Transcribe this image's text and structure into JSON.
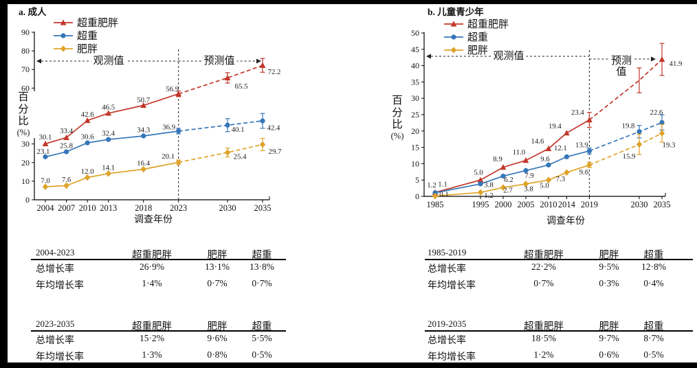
{
  "chart_data": [
    {
      "type": "line",
      "title": "a. 成人",
      "xlabel": "调查年份",
      "ylabel": "百分比",
      "ylabel_unit": "(%)",
      "observed_label": "观测值",
      "predicted_label": "预测值",
      "years": [
        2004,
        2007,
        2010,
        2013,
        2018,
        2023,
        2030,
        2035
      ],
      "break_year": 2023,
      "ylim": [
        0,
        90
      ],
      "ytick_step": 10,
      "legend_position": "top-left",
      "series": [
        {
          "name": "超重肥胖",
          "color": "#c2362b",
          "marker": "triangle",
          "values": [
            30.1,
            33.4,
            42.6,
            46.5,
            50.7,
            56.9,
            65.5,
            72.2
          ],
          "point_labels": [
            "30.1",
            "33.4",
            "42.6",
            "46.5",
            "50.7",
            "56.9",
            "65.5",
            "72.2"
          ],
          "err": [
            null,
            null,
            null,
            null,
            null,
            1.5,
            2.8,
            3.7
          ],
          "label_offsets": [
            [
              0,
              -10
            ],
            [
              0,
              -10
            ],
            [
              0,
              -9
            ],
            [
              0,
              -9
            ],
            [
              0,
              -8
            ],
            [
              -9,
              -7
            ],
            [
              20,
              12
            ],
            [
              17,
              9
            ]
          ]
        },
        {
          "name": "超重",
          "color": "#3576b9",
          "marker": "circle",
          "values": [
            23.1,
            25.8,
            30.6,
            32.4,
            34.3,
            36.9,
            40.1,
            42.4
          ],
          "point_labels": [
            "23.1",
            "25.8",
            "30.6",
            "32.4",
            "34.3",
            "36.9",
            "40.1",
            "42.4"
          ],
          "err": [
            null,
            null,
            null,
            null,
            null,
            1.5,
            3.5,
            4.0
          ],
          "label_offsets": [
            [
              -3,
              -8
            ],
            [
              0,
              -9
            ],
            [
              0,
              -9
            ],
            [
              0,
              -9
            ],
            [
              0,
              -9
            ],
            [
              -14,
              -6
            ],
            [
              15,
              6
            ],
            [
              16,
              10
            ]
          ]
        },
        {
          "name": "肥胖",
          "color": "#dfa32a",
          "marker": "diamond",
          "values": [
            7.0,
            7.6,
            12.0,
            14.1,
            16.4,
            20.1,
            25.4,
            29.7
          ],
          "point_labels": [
            "7.0",
            "7.6",
            "12.0",
            "14.1",
            "16.4",
            "20.1",
            "25.4",
            "29.7"
          ],
          "err": [
            null,
            null,
            null,
            null,
            null,
            1.2,
            2.4,
            3.3
          ],
          "label_offsets": [
            [
              0,
              -9
            ],
            [
              0,
              -9
            ],
            [
              0,
              -9
            ],
            [
              0,
              -9
            ],
            [
              0,
              -9
            ],
            [
              -15,
              -9
            ],
            [
              18,
              6
            ],
            [
              18,
              10
            ]
          ]
        }
      ]
    },
    {
      "type": "line",
      "title": "b. 儿童青少年",
      "xlabel": "调查年份",
      "ylabel": "百分比",
      "ylabel_unit": "(%)",
      "observed_label": "观测值",
      "predicted_label": "预测值",
      "years": [
        1985,
        1995,
        2000,
        2005,
        2010,
        2014,
        2019,
        2030,
        2035
      ],
      "break_year": 2019,
      "ylim": [
        0,
        50
      ],
      "ytick_step": 5,
      "legend_position": "top-left",
      "series": [
        {
          "name": "超重肥胖",
          "color": "#c2362b",
          "marker": "triangle",
          "values": [
            1.2,
            5.0,
            8.9,
            11.0,
            14.6,
            19.4,
            23.4,
            35.5,
            41.9
          ],
          "point_labels": [
            "1.2",
            "5.0",
            "8.9",
            "11.0",
            "14.6",
            "19.4",
            "23.4",
            null,
            "41.9"
          ],
          "err": [
            null,
            null,
            null,
            null,
            null,
            null,
            2.3,
            3.8,
            4.9
          ],
          "label_offsets": [
            [
              -5,
              -11
            ],
            [
              -3,
              -11
            ],
            [
              -8,
              -12
            ],
            [
              -10,
              -12
            ],
            [
              -16,
              -11
            ],
            [
              -17,
              -10
            ],
            [
              -17,
              -11
            ],
            null,
            [
              20,
              6
            ]
          ],
          "skip_markers": [
            7
          ]
        },
        {
          "name": "超重",
          "color": "#3576b9",
          "marker": "circle",
          "values": [
            1.1,
            3.8,
            6.2,
            7.9,
            9.6,
            12.1,
            13.9,
            19.8,
            22.6
          ],
          "point_labels": [
            "1.1",
            "3.8",
            "6.2",
            "7.9",
            "9.6",
            "12.1",
            "13.9",
            "19.8",
            "22.6"
          ],
          "err": [
            null,
            null,
            null,
            null,
            null,
            null,
            0.9,
            1.9,
            2.3
          ],
          "label_offsets": [
            [
              11,
              -13
            ],
            [
              12,
              1
            ],
            [
              8,
              5
            ],
            [
              5,
              7
            ],
            [
              -5,
              -9
            ],
            [
              -9,
              -13
            ],
            [
              -11,
              -9
            ],
            [
              -16,
              -9
            ],
            [
              -8,
              -15
            ]
          ]
        },
        {
          "name": "肥胖",
          "color": "#dfa32a",
          "marker": "diamond",
          "values": [
            0.1,
            1.2,
            2.7,
            3.8,
            5.0,
            7.3,
            9.6,
            15.9,
            19.3
          ],
          "point_labels": [
            "0.1",
            "1.2",
            "2.7",
            "3.8",
            "5.0",
            "7.3",
            "9.6",
            "15.9",
            "19.3"
          ],
          "err": [
            null,
            null,
            null,
            null,
            null,
            null,
            0.8,
            3.1,
            2.7
          ],
          "label_offsets": [
            [
              13,
              -3
            ],
            [
              12,
              4
            ],
            [
              7,
              4
            ],
            [
              4,
              7
            ],
            [
              -6,
              8
            ],
            [
              -9,
              9
            ],
            [
              -8,
              10
            ],
            [
              -15,
              17
            ],
            [
              10,
              17
            ]
          ]
        }
      ]
    }
  ],
  "tables": [
    {
      "period": "2004-2023",
      "columns": [
        "超重肥胖",
        "肥胖",
        "超重"
      ],
      "rows": [
        {
          "label": "总增长率",
          "values": [
            "26·9%",
            "13·1%",
            "13·8%"
          ]
        },
        {
          "label": "年均增长率",
          "values": [
            "1·4%",
            "0·7%",
            "0·7%"
          ]
        }
      ]
    },
    {
      "period": "2023-2035",
      "columns": [
        "超重肥胖",
        "肥胖",
        "超重"
      ],
      "rows": [
        {
          "label": "总增长率",
          "values": [
            "15·2%",
            "9·6%",
            "5·5%"
          ]
        },
        {
          "label": "年均增长率",
          "values": [
            "1·3%",
            "0·8%",
            "0·5%"
          ]
        }
      ]
    },
    {
      "period": "1985-2019",
      "columns": [
        "超重肥胖",
        "肥胖",
        "超重"
      ],
      "rows": [
        {
          "label": "总增长率",
          "values": [
            "22·2%",
            "9·5%",
            "12·8%"
          ]
        },
        {
          "label": "年均增长率",
          "values": [
            "0·7%",
            "0·3%",
            "0·4%"
          ]
        }
      ]
    },
    {
      "period": "2019-2035",
      "columns": [
        "超重肥胖",
        "肥胖",
        "超重"
      ],
      "rows": [
        {
          "label": "总增长率",
          "values": [
            "18·5%",
            "9·7%",
            "8·7%"
          ]
        },
        {
          "label": "年均增长率",
          "values": [
            "1·2%",
            "0·6%",
            "0·5%"
          ]
        }
      ]
    }
  ]
}
